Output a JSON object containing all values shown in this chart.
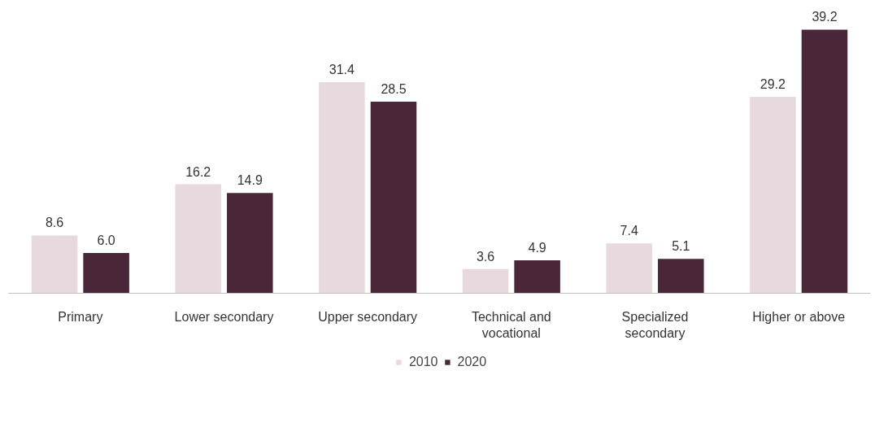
{
  "chart_data": {
    "type": "bar",
    "categories": [
      "Primary",
      "Lower secondary",
      "Upper secondary",
      "Technical and vocational",
      "Specialized secondary",
      "Higher or above"
    ],
    "series": [
      {
        "name": "2010",
        "color": "#e8d9df",
        "values": [
          8.6,
          16.2,
          31.4,
          3.6,
          7.4,
          29.2
        ],
        "value_labels": [
          "8.6",
          "16.2",
          "31.4",
          "3.6",
          "7.4",
          "29.2"
        ]
      },
      {
        "name": "2020",
        "color": "#4a2738",
        "values": [
          6.0,
          14.9,
          28.5,
          4.9,
          5.1,
          39.2
        ],
        "value_labels": [
          "6.0",
          "14.9",
          "28.5",
          "4.9",
          "5.1",
          "39.2"
        ]
      }
    ],
    "legend": "bottom",
    "tick_labels": "x"
  }
}
